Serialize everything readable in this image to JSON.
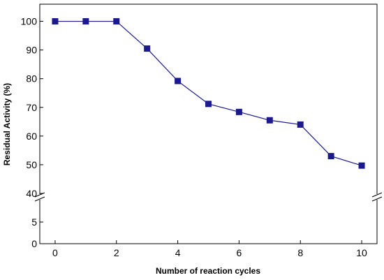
{
  "chart_data": {
    "type": "line",
    "xlabel": "Number of reaction cycles",
    "ylabel": "Residual Activity (%)",
    "x": [
      0,
      1,
      2,
      3,
      4,
      5,
      6,
      7,
      8,
      9,
      10
    ],
    "series": [
      {
        "values": [
          100,
          100,
          100,
          90.5,
          79.2,
          71.2,
          68.4,
          65.5,
          64.0,
          53.0,
          49.7
        ],
        "color": "#1a1a8c"
      }
    ],
    "xlim": [
      -0.5,
      10.5
    ],
    "x_ticks": [
      0,
      2,
      4,
      6,
      8,
      10
    ],
    "y_axis_break": true,
    "y_lower_segment": {
      "range": [
        0,
        10
      ],
      "ticks": [
        0,
        5
      ]
    },
    "y_upper_segment": {
      "range": [
        40,
        105
      ],
      "ticks": [
        40,
        50,
        60,
        70,
        80,
        90,
        100
      ]
    },
    "grid": false,
    "legend": "none"
  }
}
